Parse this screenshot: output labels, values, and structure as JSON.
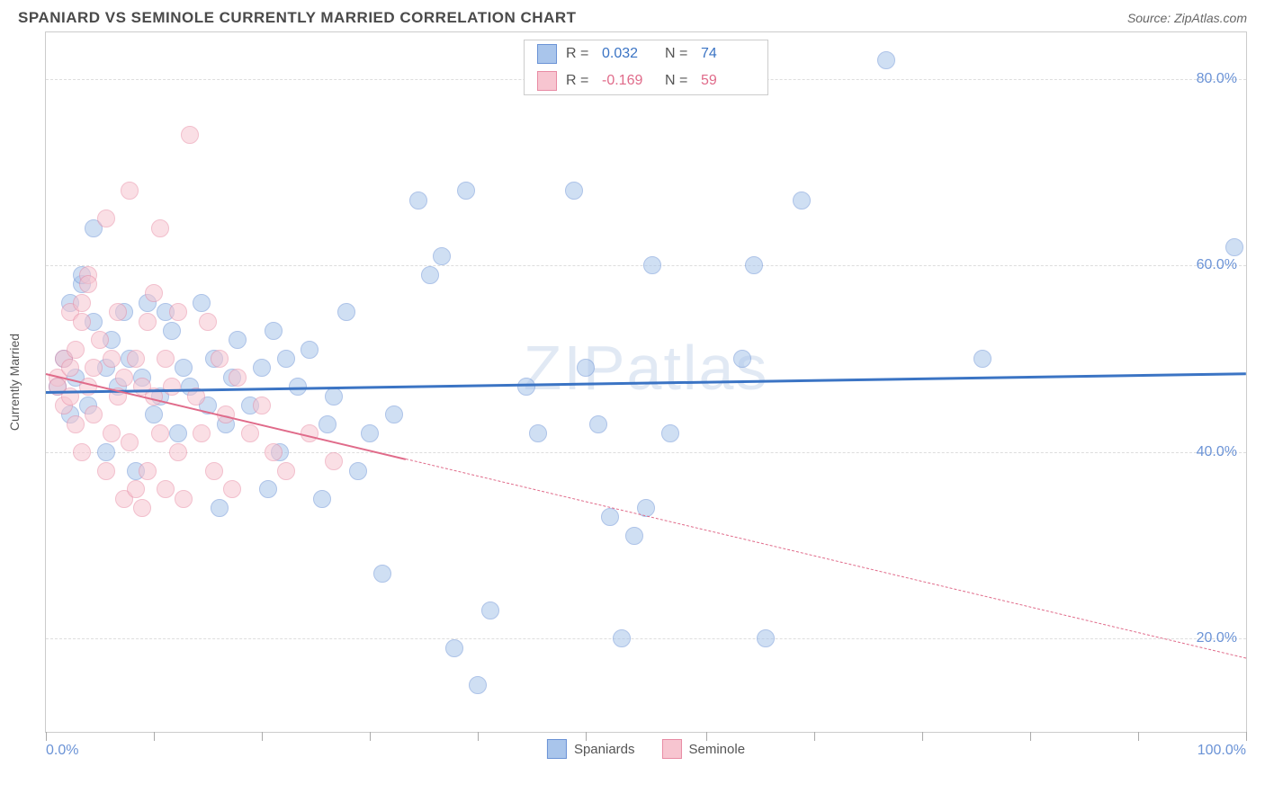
{
  "header": {
    "title": "SPANIARD VS SEMINOLE CURRENTLY MARRIED CORRELATION CHART",
    "source_label": "Source:",
    "source_name": "ZipAtlas.com"
  },
  "watermark": "ZIPatlas",
  "chart": {
    "type": "scatter",
    "ylabel": "Currently Married",
    "xlim": [
      0,
      100
    ],
    "ylim": [
      10,
      85
    ],
    "xtick_positions": [
      0,
      9,
      18,
      27,
      36,
      45,
      55,
      64,
      73,
      82,
      91,
      100
    ],
    "xtick_labels_shown": {
      "0": "0.0%",
      "100": "100.0%"
    },
    "ytick_positions": [
      20,
      40,
      60,
      80
    ],
    "ytick_labels": [
      "20.0%",
      "40.0%",
      "60.0%",
      "80.0%"
    ],
    "grid_color": "#dddddd",
    "border_color": "#cccccc",
    "background_color": "#ffffff",
    "marker_radius": 10,
    "marker_opacity": 0.55,
    "series": [
      {
        "name": "Spaniards",
        "color_fill": "#a9c5eb",
        "color_stroke": "#6b93d6",
        "label_color": "#3b74c4",
        "R": "0.032",
        "N": "74",
        "trend": {
          "x1": 0,
          "y1": 46.5,
          "x2": 100,
          "y2": 48.5,
          "solid_until_x": 100,
          "color": "#3b74c4",
          "width": 3
        },
        "points": [
          [
            1,
            47
          ],
          [
            1.5,
            50
          ],
          [
            2,
            56
          ],
          [
            2,
            44
          ],
          [
            2.5,
            48
          ],
          [
            3,
            58
          ],
          [
            3,
            59
          ],
          [
            3.5,
            45
          ],
          [
            4,
            54
          ],
          [
            4,
            64
          ],
          [
            5,
            40
          ],
          [
            5,
            49
          ],
          [
            5.5,
            52
          ],
          [
            6,
            47
          ],
          [
            6.5,
            55
          ],
          [
            7,
            50
          ],
          [
            7.5,
            38
          ],
          [
            8,
            48
          ],
          [
            8.5,
            56
          ],
          [
            9,
            44
          ],
          [
            9.5,
            46
          ],
          [
            10,
            55
          ],
          [
            10.5,
            53
          ],
          [
            11,
            42
          ],
          [
            11.5,
            49
          ],
          [
            12,
            47
          ],
          [
            13,
            56
          ],
          [
            13.5,
            45
          ],
          [
            14,
            50
          ],
          [
            14.5,
            34
          ],
          [
            15,
            43
          ],
          [
            15.5,
            48
          ],
          [
            16,
            52
          ],
          [
            17,
            45
          ],
          [
            18,
            49
          ],
          [
            18.5,
            36
          ],
          [
            19,
            53
          ],
          [
            19.5,
            40
          ],
          [
            20,
            50
          ],
          [
            21,
            47
          ],
          [
            22,
            51
          ],
          [
            23,
            35
          ],
          [
            23.5,
            43
          ],
          [
            24,
            46
          ],
          [
            25,
            55
          ],
          [
            26,
            38
          ],
          [
            27,
            42
          ],
          [
            28,
            27
          ],
          [
            29,
            44
          ],
          [
            31,
            67
          ],
          [
            32,
            59
          ],
          [
            33,
            61
          ],
          [
            34,
            19
          ],
          [
            35,
            68
          ],
          [
            36,
            15
          ],
          [
            37,
            23
          ],
          [
            40,
            47
          ],
          [
            41,
            42
          ],
          [
            44,
            68
          ],
          [
            45,
            49
          ],
          [
            46,
            43
          ],
          [
            47,
            33
          ],
          [
            48,
            20
          ],
          [
            49,
            31
          ],
          [
            50,
            34
          ],
          [
            50.5,
            60
          ],
          [
            52,
            42
          ],
          [
            58,
            50
          ],
          [
            59,
            60
          ],
          [
            60,
            20
          ],
          [
            63,
            67
          ],
          [
            70,
            82
          ],
          [
            78,
            50
          ],
          [
            99,
            62
          ]
        ]
      },
      {
        "name": "Seminole",
        "color_fill": "#f7c5d0",
        "color_stroke": "#e88ba4",
        "label_color": "#e06b8a",
        "R": "-0.169",
        "N": "59",
        "trend": {
          "x1": 0,
          "y1": 48.5,
          "x2": 100,
          "y2": 18,
          "solid_until_x": 30,
          "color": "#e06b8a",
          "width": 2
        },
        "points": [
          [
            1,
            48
          ],
          [
            1,
            47
          ],
          [
            1.5,
            50
          ],
          [
            1.5,
            45
          ],
          [
            2,
            49
          ],
          [
            2,
            46
          ],
          [
            2,
            55
          ],
          [
            2.5,
            43
          ],
          [
            2.5,
            51
          ],
          [
            3,
            56
          ],
          [
            3,
            54
          ],
          [
            3,
            40
          ],
          [
            3.5,
            47
          ],
          [
            3.5,
            59
          ],
          [
            3.5,
            58
          ],
          [
            4,
            44
          ],
          [
            4,
            49
          ],
          [
            4.5,
            52
          ],
          [
            5,
            65
          ],
          [
            5,
            38
          ],
          [
            5.5,
            42
          ],
          [
            5.5,
            50
          ],
          [
            6,
            46
          ],
          [
            6,
            55
          ],
          [
            6.5,
            35
          ],
          [
            6.5,
            48
          ],
          [
            7,
            68
          ],
          [
            7,
            41
          ],
          [
            7.5,
            36
          ],
          [
            7.5,
            50
          ],
          [
            8,
            47
          ],
          [
            8,
            34
          ],
          [
            8.5,
            54
          ],
          [
            8.5,
            38
          ],
          [
            9,
            46
          ],
          [
            9,
            57
          ],
          [
            9.5,
            42
          ],
          [
            9.5,
            64
          ],
          [
            10,
            50
          ],
          [
            10,
            36
          ],
          [
            10.5,
            47
          ],
          [
            11,
            40
          ],
          [
            11,
            55
          ],
          [
            11.5,
            35
          ],
          [
            12,
            74
          ],
          [
            12.5,
            46
          ],
          [
            13,
            42
          ],
          [
            13.5,
            54
          ],
          [
            14,
            38
          ],
          [
            14.5,
            50
          ],
          [
            15,
            44
          ],
          [
            15.5,
            36
          ],
          [
            16,
            48
          ],
          [
            17,
            42
          ],
          [
            18,
            45
          ],
          [
            19,
            40
          ],
          [
            20,
            38
          ],
          [
            22,
            42
          ],
          [
            24,
            39
          ]
        ]
      }
    ],
    "legend_bottom": [
      "Spaniards",
      "Seminole"
    ]
  }
}
